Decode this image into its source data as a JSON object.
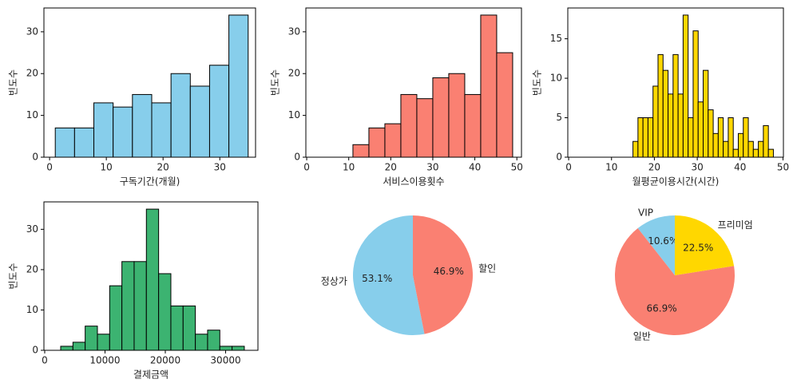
{
  "chart_data": [
    {
      "type": "histogram",
      "xlabel": "구독기간(개월)",
      "ylabel": "빈도수",
      "color": "#87ceeb",
      "bins": [
        1,
        4.4,
        7.8,
        11.2,
        14.6,
        18,
        21.4,
        24.8,
        28.2,
        31.6,
        35
      ],
      "values": [
        7,
        7,
        13,
        12,
        15,
        13,
        20,
        17,
        22,
        34
      ],
      "xlim": [
        -1,
        36.3
      ],
      "ylim": [
        0,
        35.7
      ],
      "xticks": [
        0,
        10,
        20,
        30
      ],
      "yticks": [
        0,
        10,
        20,
        30
      ]
    },
    {
      "type": "histogram",
      "xlabel": "서비스이용횟수",
      "ylabel": "빈도수",
      "color": "#fa8072",
      "bins": [
        11,
        14.8,
        18.6,
        22.4,
        26.2,
        30,
        33.8,
        37.6,
        41.4,
        45.2,
        49
      ],
      "values": [
        3,
        7,
        8,
        15,
        14,
        19,
        20,
        15,
        34,
        25
      ],
      "xlim": [
        -0.2,
        51.1
      ],
      "ylim": [
        0,
        35.7
      ],
      "xticks": [
        0,
        10,
        20,
        30,
        40,
        50
      ],
      "yticks": [
        0,
        10,
        20,
        30
      ]
    },
    {
      "type": "histogram",
      "xlabel": "월평균이용시간(시간)",
      "ylabel": "빈도수",
      "color": "#ffd700",
      "bins": [
        15,
        16.17,
        17.34,
        18.51,
        19.68,
        20.85,
        22.02,
        23.19,
        24.36,
        25.53,
        26.7,
        27.87,
        29.04,
        30.21,
        31.38,
        32.55,
        33.72,
        34.89,
        36.06,
        37.23,
        38.4,
        39.57,
        40.74,
        41.91,
        43.08,
        44.25,
        45.42,
        46.59,
        47.76
      ],
      "values": [
        2,
        5,
        5,
        5,
        9,
        13,
        11,
        8,
        13,
        8,
        18,
        5,
        16,
        7,
        11,
        6,
        3,
        5,
        2,
        5,
        1,
        3,
        5,
        2,
        1,
        2,
        4,
        1
      ],
      "xlim": [
        -0.2,
        50.1
      ],
      "ylim": [
        0,
        18.9
      ],
      "xticks": [
        0,
        10,
        20,
        30,
        40,
        50
      ],
      "yticks": [
        0,
        5,
        10,
        15
      ]
    },
    {
      "type": "histogram",
      "xlabel": "결제금액",
      "ylabel": "빈도수",
      "color": "#3cb371",
      "bins": [
        2650,
        4680,
        6710,
        8740,
        10770,
        12800,
        14830,
        16860,
        18890,
        20920,
        22950,
        24980,
        27010,
        29040,
        31070,
        33100
      ],
      "values": [
        1,
        2,
        6,
        4,
        16,
        22,
        22,
        35,
        19,
        11,
        11,
        4,
        5,
        1,
        1
      ],
      "xlim": [
        -130,
        35360
      ],
      "ylim": [
        0,
        36.8
      ],
      "xticks": [
        0,
        10000,
        20000,
        30000
      ],
      "yticks": [
        0,
        10,
        20,
        30
      ]
    },
    {
      "type": "pie",
      "categories": [
        "정상가",
        "할인"
      ],
      "values": [
        53.1,
        46.9
      ],
      "value_labels": [
        "53.1%",
        "46.9%"
      ],
      "colors": [
        "#87ceeb",
        "#fa8072"
      ]
    },
    {
      "type": "pie",
      "categories": [
        "VIP",
        "일반",
        "프리미엄"
      ],
      "values": [
        10.6,
        66.9,
        22.5
      ],
      "value_labels": [
        "10.6%",
        "66.9%",
        "22.5%"
      ],
      "colors": [
        "#87ceeb",
        "#fa8072",
        "#ffd700"
      ]
    }
  ]
}
